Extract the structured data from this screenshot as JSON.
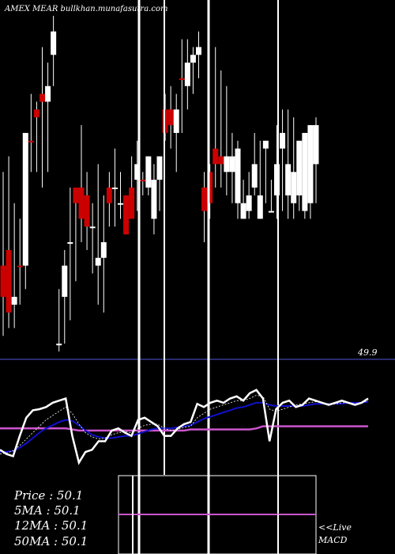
{
  "header": {
    "title": "AMEX  MEAR bullkhan.munafasutra.com"
  },
  "price_chart": {
    "reference_level": "49.9",
    "candles": [
      {
        "o": 50.0,
        "h": 50.12,
        "l": 49.91,
        "c": 49.96,
        "color": "red"
      },
      {
        "o": 50.02,
        "h": 50.14,
        "l": 49.92,
        "c": 49.94,
        "color": "red"
      },
      {
        "o": 49.95,
        "h": 50.08,
        "l": 49.92,
        "c": 49.96,
        "color": "white"
      },
      {
        "o": 50.0,
        "h": 50.06,
        "l": 49.95,
        "c": 50.0,
        "color": "red"
      },
      {
        "o": 50.0,
        "h": 50.17,
        "l": 49.97,
        "c": 50.17,
        "color": "white"
      },
      {
        "o": 50.16,
        "h": 50.22,
        "l": 50.12,
        "c": 50.16,
        "color": "red"
      },
      {
        "o": 50.19,
        "h": 50.21,
        "l": 50.12,
        "c": 50.2,
        "color": "red"
      },
      {
        "o": 50.21,
        "h": 50.28,
        "l": 50.1,
        "c": 50.22,
        "color": "red"
      },
      {
        "o": 50.21,
        "h": 50.26,
        "l": 50.12,
        "c": 50.23,
        "color": "white"
      },
      {
        "o": 50.27,
        "h": 50.32,
        "l": 50.23,
        "c": 50.3,
        "color": "white"
      },
      {
        "o": 49.9,
        "h": 49.97,
        "l": 49.89,
        "c": 49.9,
        "color": "white"
      },
      {
        "o": 49.96,
        "h": 50.02,
        "l": 49.9,
        "c": 50.0,
        "color": "white"
      },
      {
        "o": 50.03,
        "h": 50.1,
        "l": 49.93,
        "c": 50.03,
        "color": "white"
      },
      {
        "o": 50.1,
        "h": 50.1,
        "l": 49.98,
        "c": 50.08,
        "color": "red"
      },
      {
        "o": 50.1,
        "h": 50.18,
        "l": 50.03,
        "c": 50.06,
        "color": "red"
      },
      {
        "o": 50.09,
        "h": 50.12,
        "l": 50.02,
        "c": 50.05,
        "color": "red"
      },
      {
        "o": 50.05,
        "h": 50.08,
        "l": 49.99,
        "c": 50.05,
        "color": "white"
      },
      {
        "o": 50.01,
        "h": 50.13,
        "l": 49.95,
        "c": 50.0,
        "color": "white"
      },
      {
        "o": 50.01,
        "h": 50.09,
        "l": 49.94,
        "c": 50.03,
        "color": "white"
      },
      {
        "o": 50.1,
        "h": 50.12,
        "l": 50.05,
        "c": 50.08,
        "color": "red"
      },
      {
        "o": 50.1,
        "h": 50.15,
        "l": 50.05,
        "c": 50.1,
        "color": "white"
      },
      {
        "o": 50.08,
        "h": 50.12,
        "l": 50.06,
        "c": 50.08,
        "color": "white"
      },
      {
        "o": 50.09,
        "h": 50.09,
        "l": 50.04,
        "c": 50.04,
        "color": "red"
      },
      {
        "o": 50.1,
        "h": 50.14,
        "l": 50.06,
        "c": 50.06,
        "color": "red"
      },
      {
        "o": 50.11,
        "h": 50.16,
        "l": 50.07,
        "c": 50.13,
        "color": "white"
      },
      {
        "o": 50.11,
        "h": 50.12,
        "l": 50.09,
        "c": 50.11,
        "color": "red"
      },
      {
        "o": 50.14,
        "h": 50.14,
        "l": 50.09,
        "c": 50.1,
        "color": "white"
      },
      {
        "o": 50.11,
        "h": 50.13,
        "l": 50.04,
        "c": 50.06,
        "color": "white"
      },
      {
        "o": 50.14,
        "h": 50.14,
        "l": 50.07,
        "c": 50.11,
        "color": "white"
      },
      {
        "o": 50.2,
        "h": 50.22,
        "l": 50.16,
        "c": 50.17,
        "color": "red"
      },
      {
        "o": 50.2,
        "h": 50.23,
        "l": 50.15,
        "c": 50.18,
        "color": "red"
      },
      {
        "o": 50.17,
        "h": 50.22,
        "l": 50.12,
        "c": 50.2,
        "color": "white"
      },
      {
        "o": 50.24,
        "h": 50.29,
        "l": 50.17,
        "c": 50.24,
        "color": "red"
      },
      {
        "o": 50.26,
        "h": 50.29,
        "l": 50.2,
        "c": 50.23,
        "color": "white"
      },
      {
        "o": 50.27,
        "h": 50.28,
        "l": 50.22,
        "c": 50.26,
        "color": "white"
      },
      {
        "o": 50.28,
        "h": 50.3,
        "l": 50.24,
        "c": 50.27,
        "color": "white"
      },
      {
        "o": 50.1,
        "h": 50.12,
        "l": 50.03,
        "c": 50.07,
        "color": "red"
      },
      {
        "o": 50.12,
        "h": 50.13,
        "l": 50.06,
        "c": 50.08,
        "color": "red"
      },
      {
        "o": 50.15,
        "h": 50.28,
        "l": 50.1,
        "c": 50.13,
        "color": "red"
      },
      {
        "o": 50.13,
        "h": 50.25,
        "l": 50.1,
        "c": 50.14,
        "color": "red"
      },
      {
        "o": 50.14,
        "h": 50.23,
        "l": 50.09,
        "c": 50.12,
        "color": "white"
      },
      {
        "o": 50.14,
        "h": 50.17,
        "l": 50.08,
        "c": 50.12,
        "color": "white"
      },
      {
        "o": 50.08,
        "h": 50.16,
        "l": 50.06,
        "c": 50.15,
        "color": "white"
      },
      {
        "o": 50.06,
        "h": 50.11,
        "l": 50.06,
        "c": 50.08,
        "color": "white"
      },
      {
        "o": 50.09,
        "h": 50.12,
        "l": 50.06,
        "c": 50.07,
        "color": "white"
      },
      {
        "o": 50.13,
        "h": 50.17,
        "l": 50.09,
        "c": 50.1,
        "color": "white"
      },
      {
        "o": 50.09,
        "h": 50.16,
        "l": 50.06,
        "c": 50.06,
        "color": "white"
      },
      {
        "o": 50.16,
        "h": 50.16,
        "l": 50.08,
        "c": 50.15,
        "color": "white"
      },
      {
        "o": 50.07,
        "h": 50.11,
        "l": 50.07,
        "c": 50.07,
        "color": "white"
      },
      {
        "o": 50.09,
        "h": 50.18,
        "l": 50.06,
        "c": 50.13,
        "color": "white"
      },
      {
        "o": 50.15,
        "h": 50.2,
        "l": 50.07,
        "c": 50.17,
        "color": "white"
      },
      {
        "o": 50.09,
        "h": 50.2,
        "l": 50.06,
        "c": 50.13,
        "color": "white"
      },
      {
        "o": 50.12,
        "h": 50.19,
        "l": 50.06,
        "c": 50.08,
        "color": "white"
      },
      {
        "o": 50.16,
        "h": 50.16,
        "l": 50.07,
        "c": 50.09,
        "color": "white"
      },
      {
        "o": 50.17,
        "h": 50.17,
        "l": 50.06,
        "c": 50.07,
        "color": "white"
      },
      {
        "o": 50.18,
        "h": 50.18,
        "l": 50.06,
        "c": 50.08,
        "color": "white"
      },
      {
        "o": 50.18,
        "h": 50.19,
        "l": 50.08,
        "c": 50.13,
        "color": "white"
      }
    ]
  },
  "chart_data": {
    "type": "candlestick",
    "title": "AMEX  MEAR bullkhan.munafasutra.com",
    "reference_level": 49.9,
    "ylim": [
      49.88,
      50.32
    ],
    "lower_panel": {
      "price_line": [
        0.42,
        0.38,
        0.36,
        0.55,
        0.72,
        0.79,
        0.8,
        0.82,
        0.86,
        0.88,
        0.9,
        0.55,
        0.3,
        0.4,
        0.42,
        0.5,
        0.5,
        0.6,
        0.62,
        0.58,
        0.55,
        0.7,
        0.72,
        0.68,
        0.64,
        0.55,
        0.55,
        0.62,
        0.66,
        0.68,
        0.85,
        0.82,
        0.86,
        0.88,
        0.86,
        0.9,
        0.92,
        0.88,
        0.95,
        0.98,
        0.9,
        0.5,
        0.8,
        0.86,
        0.88,
        0.82,
        0.84,
        0.9,
        0.88,
        0.86,
        0.84,
        0.86,
        0.88,
        0.86,
        0.84,
        0.86,
        0.9
      ],
      "ma12_line": [
        0.4,
        0.4,
        0.41,
        0.44,
        0.48,
        0.53,
        0.58,
        0.62,
        0.65,
        0.68,
        0.7,
        0.69,
        0.65,
        0.6,
        0.56,
        0.54,
        0.53,
        0.53,
        0.54,
        0.55,
        0.55,
        0.57,
        0.59,
        0.61,
        0.62,
        0.62,
        0.62,
        0.63,
        0.64,
        0.65,
        0.68,
        0.71,
        0.73,
        0.75,
        0.77,
        0.79,
        0.81,
        0.82,
        0.84,
        0.86,
        0.86,
        0.84,
        0.83,
        0.83,
        0.83,
        0.83,
        0.83,
        0.84,
        0.85,
        0.85,
        0.85,
        0.85,
        0.85,
        0.86,
        0.86,
        0.86,
        0.87
      ],
      "ma50_line": [
        0.62,
        0.62,
        0.62,
        0.62,
        0.62,
        0.62,
        0.62,
        0.62,
        0.62,
        0.62,
        0.62,
        0.61,
        0.6,
        0.6,
        0.6,
        0.6,
        0.6,
        0.6,
        0.6,
        0.6,
        0.6,
        0.6,
        0.6,
        0.6,
        0.6,
        0.6,
        0.6,
        0.6,
        0.6,
        0.61,
        0.61,
        0.61,
        0.61,
        0.61,
        0.61,
        0.61,
        0.61,
        0.61,
        0.61,
        0.62,
        0.64,
        0.64,
        0.64,
        0.64,
        0.64,
        0.64,
        0.64,
        0.64,
        0.64,
        0.64,
        0.64,
        0.64,
        0.64,
        0.64,
        0.64,
        0.64,
        0.64
      ],
      "ma5_line": [
        0.38,
        0.39,
        0.41,
        0.46,
        0.52,
        0.58,
        0.64,
        0.7,
        0.74,
        0.78,
        0.82,
        0.76,
        0.66,
        0.58,
        0.54,
        0.52,
        0.53,
        0.56,
        0.58,
        0.59,
        0.58,
        0.62,
        0.65,
        0.66,
        0.66,
        0.62,
        0.6,
        0.61,
        0.63,
        0.64,
        0.72,
        0.76,
        0.8,
        0.82,
        0.84,
        0.86,
        0.88,
        0.88,
        0.9,
        0.93,
        0.92,
        0.8,
        0.78,
        0.8,
        0.82,
        0.84,
        0.85,
        0.86,
        0.87,
        0.86,
        0.85,
        0.85,
        0.86,
        0.86,
        0.85,
        0.86,
        0.88
      ]
    },
    "ma_values": {
      "price": "50.1",
      "ma5": "50.1",
      "ma12": "50.1",
      "ma50": "50.1"
    },
    "macd_panel": {
      "signal": [
        0,
        0,
        0,
        0,
        0,
        0,
        0,
        0,
        0,
        0,
        0,
        0,
        0,
        0,
        0,
        0,
        0,
        0,
        0,
        0,
        0,
        0,
        0,
        0,
        0,
        0,
        0,
        0,
        0,
        0,
        0,
        0,
        0,
        0,
        0,
        0,
        0,
        0,
        0,
        0,
        0,
        0,
        0,
        0,
        0,
        0,
        0,
        0,
        0,
        0,
        0,
        0,
        0,
        0,
        0,
        0,
        0
      ]
    }
  },
  "stats": {
    "price_label": "Price   : 50.1",
    "ma5_label": "5MA  : 50.1",
    "ma12_label": "12MA : 50.1",
    "ma50_label": "50MA : 50.1",
    "live_label": "<<Live",
    "macd_label": "MACD"
  },
  "colors": {
    "background": "#000000",
    "up_candle": "#ffffff",
    "down_candle": "#cc0000",
    "reference_line": "#2a2a6e",
    "price_line": "#ffffff",
    "ma12": "#1010cc",
    "ma50": "#cc55cc",
    "ma5": "#ffffff"
  }
}
